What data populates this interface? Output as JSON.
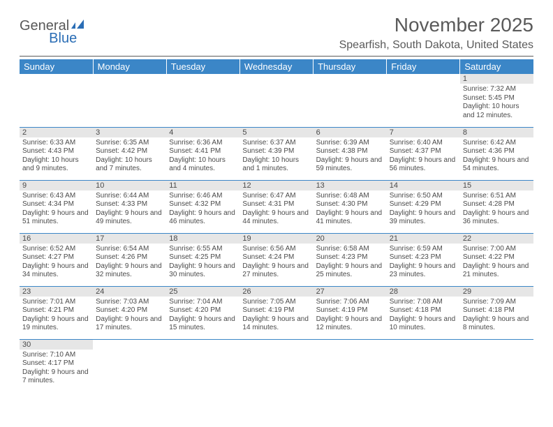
{
  "logo": {
    "general": "General",
    "blue": "Blue"
  },
  "colors": {
    "header_bg": "#3b86c7",
    "header_text": "#ffffff",
    "day_bar_bg": "#e6e6e6",
    "text_gray": "#5a5a5a",
    "row_divider": "#3b86c7"
  },
  "title": "November 2025",
  "location": "Spearfish, South Dakota, United States",
  "weekdays": [
    "Sunday",
    "Monday",
    "Tuesday",
    "Wednesday",
    "Thursday",
    "Friday",
    "Saturday"
  ],
  "days": [
    {
      "n": 1,
      "sunrise": "7:32 AM",
      "sunset": "5:45 PM",
      "day_h": 10,
      "day_m": 12
    },
    {
      "n": 2,
      "sunrise": "6:33 AM",
      "sunset": "4:43 PM",
      "day_h": 10,
      "day_m": 9
    },
    {
      "n": 3,
      "sunrise": "6:35 AM",
      "sunset": "4:42 PM",
      "day_h": 10,
      "day_m": 7
    },
    {
      "n": 4,
      "sunrise": "6:36 AM",
      "sunset": "4:41 PM",
      "day_h": 10,
      "day_m": 4
    },
    {
      "n": 5,
      "sunrise": "6:37 AM",
      "sunset": "4:39 PM",
      "day_h": 10,
      "day_m": 1
    },
    {
      "n": 6,
      "sunrise": "6:39 AM",
      "sunset": "4:38 PM",
      "day_h": 9,
      "day_m": 59
    },
    {
      "n": 7,
      "sunrise": "6:40 AM",
      "sunset": "4:37 PM",
      "day_h": 9,
      "day_m": 56
    },
    {
      "n": 8,
      "sunrise": "6:42 AM",
      "sunset": "4:36 PM",
      "day_h": 9,
      "day_m": 54
    },
    {
      "n": 9,
      "sunrise": "6:43 AM",
      "sunset": "4:34 PM",
      "day_h": 9,
      "day_m": 51
    },
    {
      "n": 10,
      "sunrise": "6:44 AM",
      "sunset": "4:33 PM",
      "day_h": 9,
      "day_m": 49
    },
    {
      "n": 11,
      "sunrise": "6:46 AM",
      "sunset": "4:32 PM",
      "day_h": 9,
      "day_m": 46
    },
    {
      "n": 12,
      "sunrise": "6:47 AM",
      "sunset": "4:31 PM",
      "day_h": 9,
      "day_m": 44
    },
    {
      "n": 13,
      "sunrise": "6:48 AM",
      "sunset": "4:30 PM",
      "day_h": 9,
      "day_m": 41
    },
    {
      "n": 14,
      "sunrise": "6:50 AM",
      "sunset": "4:29 PM",
      "day_h": 9,
      "day_m": 39
    },
    {
      "n": 15,
      "sunrise": "6:51 AM",
      "sunset": "4:28 PM",
      "day_h": 9,
      "day_m": 36
    },
    {
      "n": 16,
      "sunrise": "6:52 AM",
      "sunset": "4:27 PM",
      "day_h": 9,
      "day_m": 34
    },
    {
      "n": 17,
      "sunrise": "6:54 AM",
      "sunset": "4:26 PM",
      "day_h": 9,
      "day_m": 32
    },
    {
      "n": 18,
      "sunrise": "6:55 AM",
      "sunset": "4:25 PM",
      "day_h": 9,
      "day_m": 30
    },
    {
      "n": 19,
      "sunrise": "6:56 AM",
      "sunset": "4:24 PM",
      "day_h": 9,
      "day_m": 27
    },
    {
      "n": 20,
      "sunrise": "6:58 AM",
      "sunset": "4:23 PM",
      "day_h": 9,
      "day_m": 25
    },
    {
      "n": 21,
      "sunrise": "6:59 AM",
      "sunset": "4:23 PM",
      "day_h": 9,
      "day_m": 23
    },
    {
      "n": 22,
      "sunrise": "7:00 AM",
      "sunset": "4:22 PM",
      "day_h": 9,
      "day_m": 21
    },
    {
      "n": 23,
      "sunrise": "7:01 AM",
      "sunset": "4:21 PM",
      "day_h": 9,
      "day_m": 19
    },
    {
      "n": 24,
      "sunrise": "7:03 AM",
      "sunset": "4:20 PM",
      "day_h": 9,
      "day_m": 17
    },
    {
      "n": 25,
      "sunrise": "7:04 AM",
      "sunset": "4:20 PM",
      "day_h": 9,
      "day_m": 15
    },
    {
      "n": 26,
      "sunrise": "7:05 AM",
      "sunset": "4:19 PM",
      "day_h": 9,
      "day_m": 14
    },
    {
      "n": 27,
      "sunrise": "7:06 AM",
      "sunset": "4:19 PM",
      "day_h": 9,
      "day_m": 12
    },
    {
      "n": 28,
      "sunrise": "7:08 AM",
      "sunset": "4:18 PM",
      "day_h": 9,
      "day_m": 10
    },
    {
      "n": 29,
      "sunrise": "7:09 AM",
      "sunset": "4:18 PM",
      "day_h": 9,
      "day_m": 8
    },
    {
      "n": 30,
      "sunrise": "7:10 AM",
      "sunset": "4:17 PM",
      "day_h": 9,
      "day_m": 7
    }
  ],
  "first_weekday_index": 6,
  "labels": {
    "sunrise_prefix": "Sunrise: ",
    "sunset_prefix": "Sunset: ",
    "daylight_prefix": "Daylight: ",
    "hours_word": " hours",
    "and_word": "and ",
    "minutes_suffix": " minutes."
  }
}
